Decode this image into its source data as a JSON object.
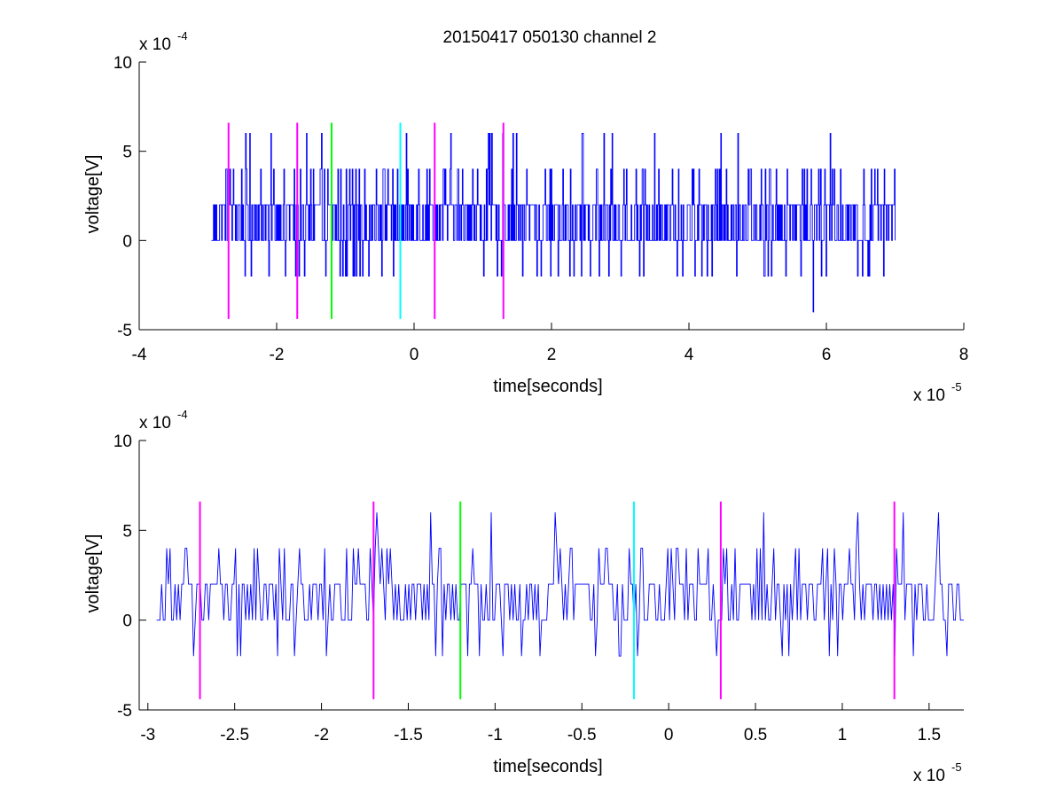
{
  "chart_data": [
    {
      "type": "line",
      "title": "20150417 050130 channel 2",
      "xlabel": "time[seconds]",
      "ylabel": "voltage[V]",
      "x_multiplier": "x 10",
      "x_exponent": "-5",
      "y_multiplier": "x 10",
      "y_exponent": "-4",
      "xlim": [
        -4,
        8
      ],
      "ylim": [
        -5,
        10
      ],
      "xticks": [
        "-4",
        "-2",
        "0",
        "2",
        "4",
        "6",
        "8"
      ],
      "yticks": [
        "-5",
        "0",
        "5",
        "10"
      ],
      "grid": false,
      "series": [
        {
          "color": "#0000ff",
          "x_range": [
            -2.95,
            7.0
          ],
          "levels": [
            -4,
            -2,
            0,
            2,
            4,
            6
          ],
          "typical_range": [
            0,
            2
          ]
        }
      ],
      "markers": [
        {
          "x": -2.7,
          "y_range": [
            -4.4,
            6.6
          ],
          "color": "#ff00ff"
        },
        {
          "x": -1.7,
          "y_range": [
            -4.4,
            6.6
          ],
          "color": "#ff00ff"
        },
        {
          "x": -1.2,
          "y_range": [
            -4.4,
            6.6
          ],
          "color": "#00ff00"
        },
        {
          "x": -0.2,
          "y_range": [
            -4.4,
            6.6
          ],
          "color": "#00ffff"
        },
        {
          "x": 0.3,
          "y_range": [
            -4.4,
            6.6
          ],
          "color": "#ff00ff"
        },
        {
          "x": 1.3,
          "y_range": [
            -4.4,
            6.6
          ],
          "color": "#ff00ff"
        }
      ]
    },
    {
      "type": "line",
      "title": "",
      "xlabel": "time[seconds]",
      "ylabel": "voltage[V]",
      "x_multiplier": "x 10",
      "x_exponent": "-5",
      "y_multiplier": "x 10",
      "y_exponent": "-4",
      "xlim": [
        -3.05,
        1.7
      ],
      "ylim": [
        -5,
        10
      ],
      "xticks": [
        "-3",
        "-2.5",
        "-2",
        "-1.5",
        "-1",
        "-0.5",
        "0",
        "0.5",
        "1",
        "1.5"
      ],
      "yticks": [
        "-5",
        "0",
        "5",
        "10"
      ],
      "grid": false,
      "series": [
        {
          "color": "#0000ff",
          "x_range": [
            -2.95,
            1.7
          ],
          "levels": [
            -2,
            0,
            2,
            4,
            6
          ],
          "typical_range": [
            0,
            2
          ]
        }
      ],
      "markers": [
        {
          "x": -2.7,
          "y_range": [
            -4.4,
            6.6
          ],
          "color": "#ff00ff"
        },
        {
          "x": -1.7,
          "y_range": [
            -4.4,
            6.6
          ],
          "color": "#ff00ff"
        },
        {
          "x": -1.2,
          "y_range": [
            -4.4,
            6.6
          ],
          "color": "#00ff00"
        },
        {
          "x": -0.2,
          "y_range": [
            -4.4,
            6.6
          ],
          "color": "#00ffff"
        },
        {
          "x": 0.3,
          "y_range": [
            -4.4,
            6.6
          ],
          "color": "#ff00ff"
        },
        {
          "x": 1.3,
          "y_range": [
            -4.4,
            6.6
          ],
          "color": "#ff00ff"
        }
      ]
    }
  ]
}
